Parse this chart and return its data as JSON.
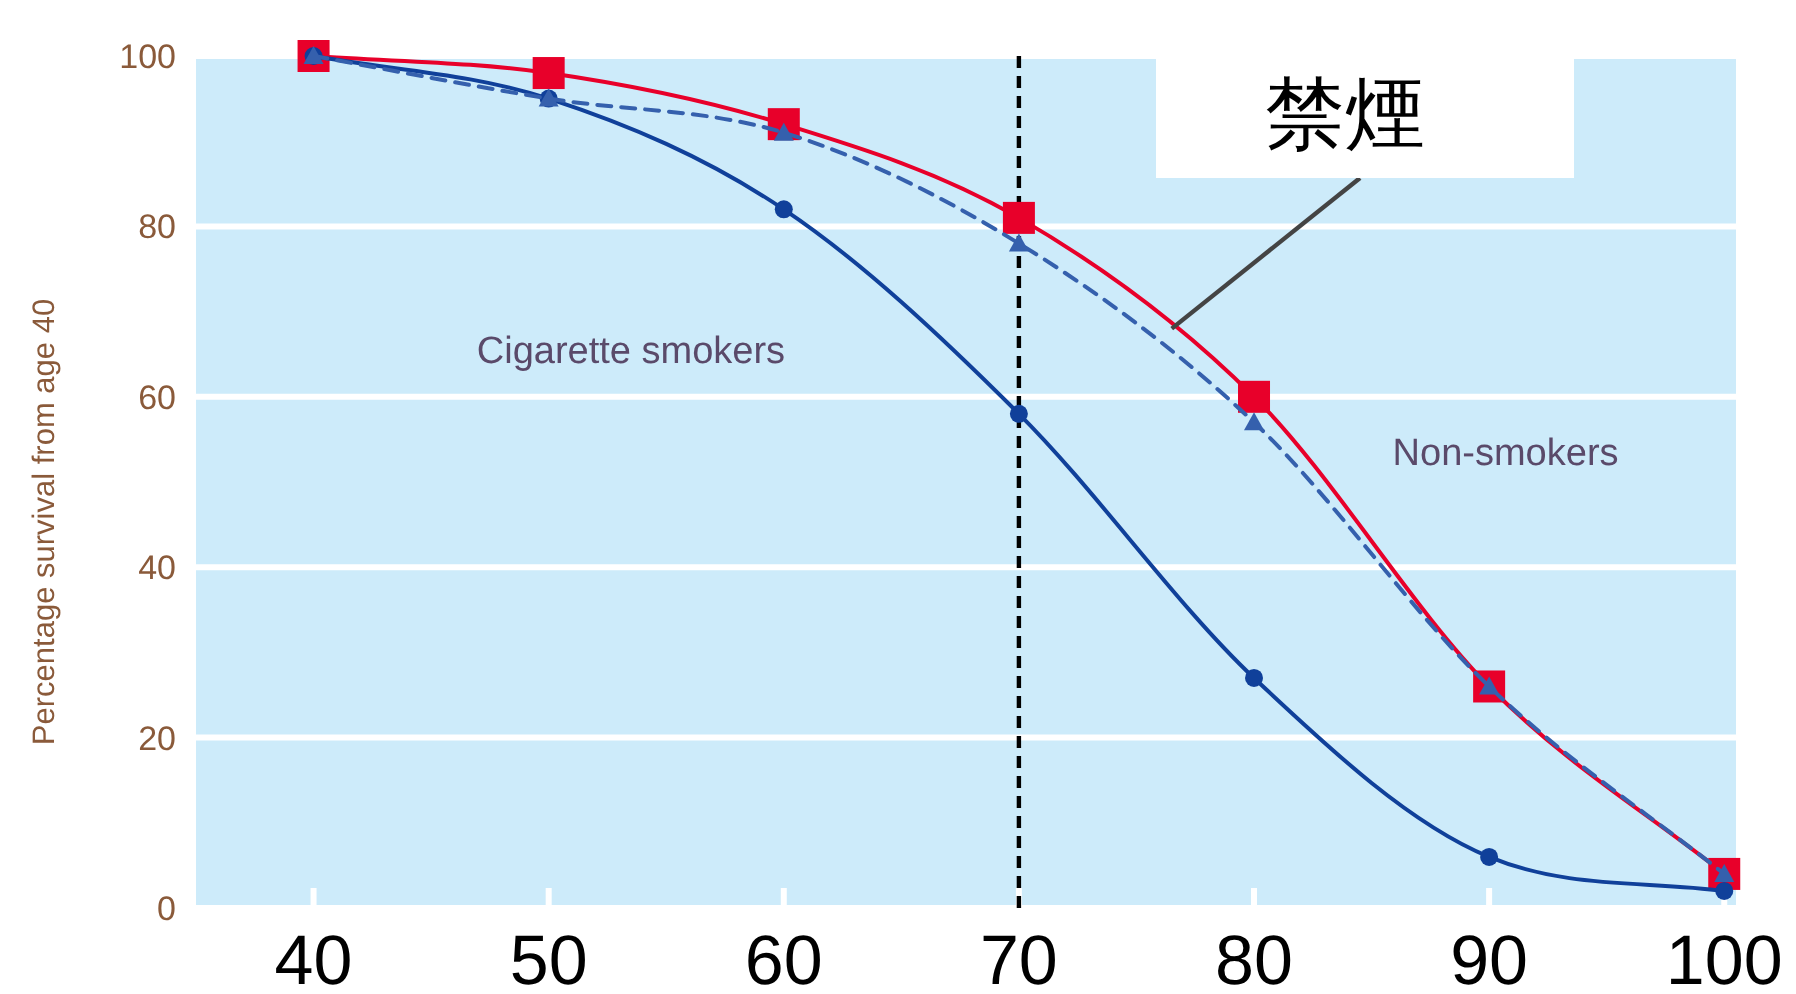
{
  "chart_data": {
    "type": "line",
    "ylabel": "Percentage survival from age 40",
    "x": [
      40,
      50,
      60,
      70,
      80,
      90,
      100
    ],
    "series": [
      {
        "name": "Non-smokers",
        "color": "#e8002a",
        "marker": "square",
        "line_style": "solid",
        "values": [
          100,
          98,
          92,
          81,
          60,
          26,
          4
        ]
      },
      {
        "name": "Cigarette smokers",
        "color": "#10409a",
        "marker": "circle",
        "line_style": "solid",
        "values": [
          100,
          95,
          82,
          58,
          27,
          6,
          2
        ]
      },
      {
        "color": "#3560ad",
        "marker": "triangle",
        "line_style": "dashed",
        "values": [
          100,
          95,
          91,
          78,
          57,
          26,
          4
        ]
      }
    ],
    "xlim": [
      35,
      100.5
    ],
    "ylim": [
      0,
      100
    ],
    "xticks": [
      40,
      50,
      60,
      70,
      80,
      90,
      100
    ],
    "yticks": [
      0,
      20,
      40,
      60,
      80,
      100
    ],
    "grid": "y",
    "ref_lines": [
      {
        "axis": "x",
        "value": 70,
        "color": "#000000",
        "line_style": "dashed"
      }
    ],
    "annotations": [
      {
        "text": "禁煙",
        "x": 76.5,
        "y": 68
      }
    ]
  }
}
